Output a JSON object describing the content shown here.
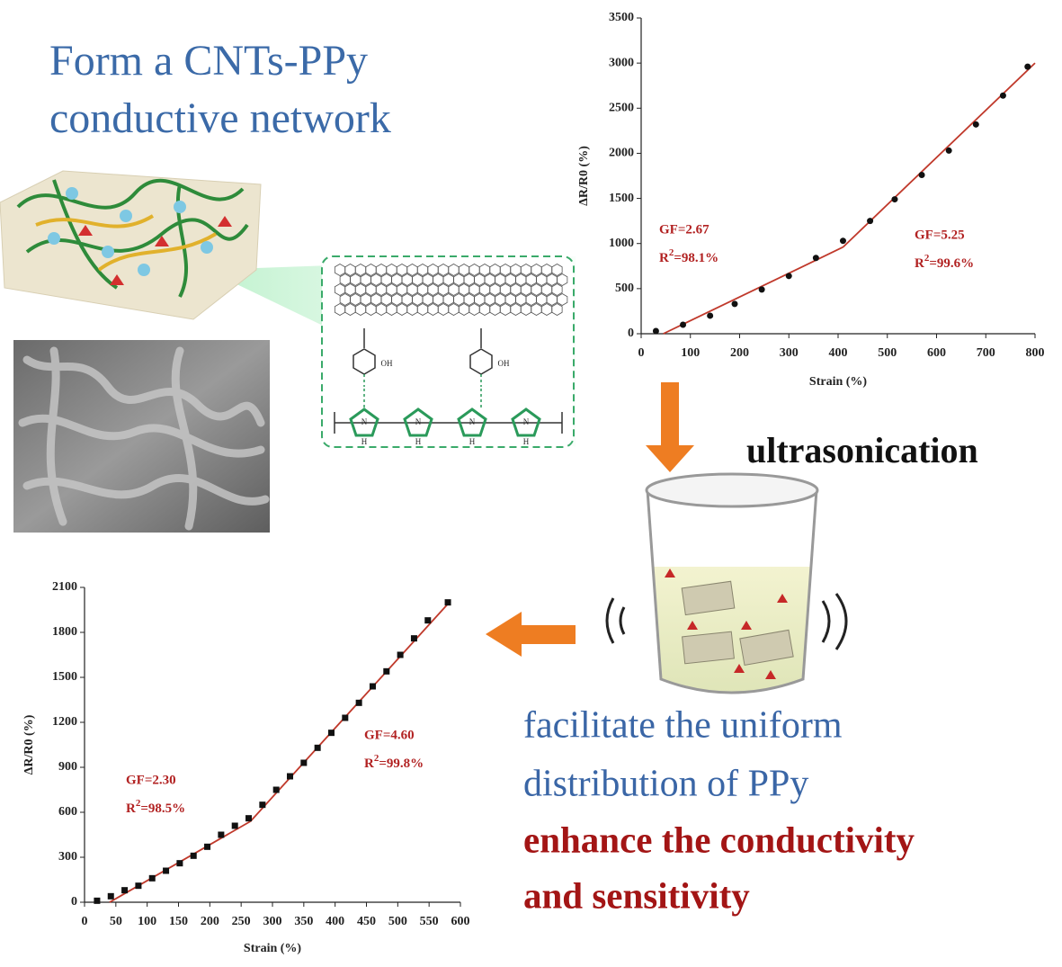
{
  "headline": [
    "Form a CNTs-PPy",
    "conductive network"
  ],
  "process": "ultrasonication",
  "effects": [
    "facilitate the uniform",
    "distribution of PPy"
  ],
  "outcome": [
    "enhance the conductivity",
    "and sensitivity"
  ],
  "molecule": {
    "labels": [
      "N",
      "N",
      "N",
      "N",
      "H",
      "H",
      "H",
      "H",
      "OH",
      "OH"
    ]
  },
  "chart_data": [
    {
      "type": "scatter",
      "marker": "circle",
      "x": [
        30,
        85,
        140,
        190,
        245,
        300,
        355,
        410,
        465,
        515,
        570,
        625,
        680,
        735,
        785
      ],
      "series": [
        {
          "color": "#111111",
          "values": [
            30,
            100,
            200,
            330,
            490,
            640,
            840,
            1030,
            1250,
            1490,
            1760,
            2030,
            2320,
            2640,
            2960
          ]
        }
      ],
      "fits": [
        {
          "color": "#c0392b",
          "x": [
            45,
            410
          ],
          "values": [
            0,
            960
          ]
        },
        {
          "color": "#c0392b",
          "x": [
            410,
            800
          ],
          "values": [
            960,
            3000
          ]
        }
      ],
      "xlim": [
        0,
        800
      ],
      "xticks": [
        0,
        100,
        200,
        300,
        400,
        500,
        600,
        700,
        800
      ],
      "ylim": [
        0,
        3500
      ],
      "yticks": [
        0,
        500,
        1000,
        1500,
        2000,
        2500,
        3000,
        3500
      ],
      "xlabel": "Strain (%)",
      "ylabel": "ΔR/R0 (%)",
      "annotations": [
        {
          "color": "#b22222",
          "gf": "GF=2.67",
          "r": "R",
          "sup": "2",
          "rest": "=98.1%"
        },
        {
          "color": "#b22222",
          "gf": "GF=5.25",
          "r": "R",
          "sup": "2",
          "rest": "=99.6%"
        }
      ]
    },
    {
      "type": "scatter",
      "marker": "square",
      "x": [
        20,
        42,
        64,
        86,
        108,
        130,
        152,
        174,
        196,
        218,
        240,
        262,
        284,
        306,
        328,
        350,
        372,
        394,
        416,
        438,
        460,
        482,
        504,
        526,
        548,
        580
      ],
      "series": [
        {
          "color": "#111111",
          "values": [
            10,
            40,
            80,
            110,
            160,
            210,
            260,
            310,
            370,
            450,
            510,
            560,
            650,
            750,
            840,
            930,
            1030,
            1130,
            1230,
            1330,
            1440,
            1540,
            1650,
            1760,
            1880,
            2000
          ]
        }
      ],
      "fits": [
        {
          "color": "#c0392b",
          "x": [
            40,
            265
          ],
          "values": [
            0,
            540
          ]
        },
        {
          "color": "#c0392b",
          "x": [
            265,
            580
          ],
          "values": [
            540,
            1990
          ]
        }
      ],
      "xlim": [
        0,
        600
      ],
      "xticks": [
        0,
        50,
        100,
        150,
        200,
        250,
        300,
        350,
        400,
        450,
        500,
        550,
        600
      ],
      "ylim": [
        0,
        2100
      ],
      "yticks": [
        0,
        300,
        600,
        900,
        1200,
        1500,
        1800,
        2100
      ],
      "xlabel": "Strain (%)",
      "ylabel": "ΔR/R0 (%)",
      "annotations": [
        {
          "color": "#b22222",
          "gf": "GF=2.30",
          "r": "R",
          "sup": "2",
          "rest": "=98.5%"
        },
        {
          "color": "#b22222",
          "gf": "GF=4.60",
          "r": "R",
          "sup": "2",
          "rest": "=99.8%"
        }
      ]
    }
  ]
}
